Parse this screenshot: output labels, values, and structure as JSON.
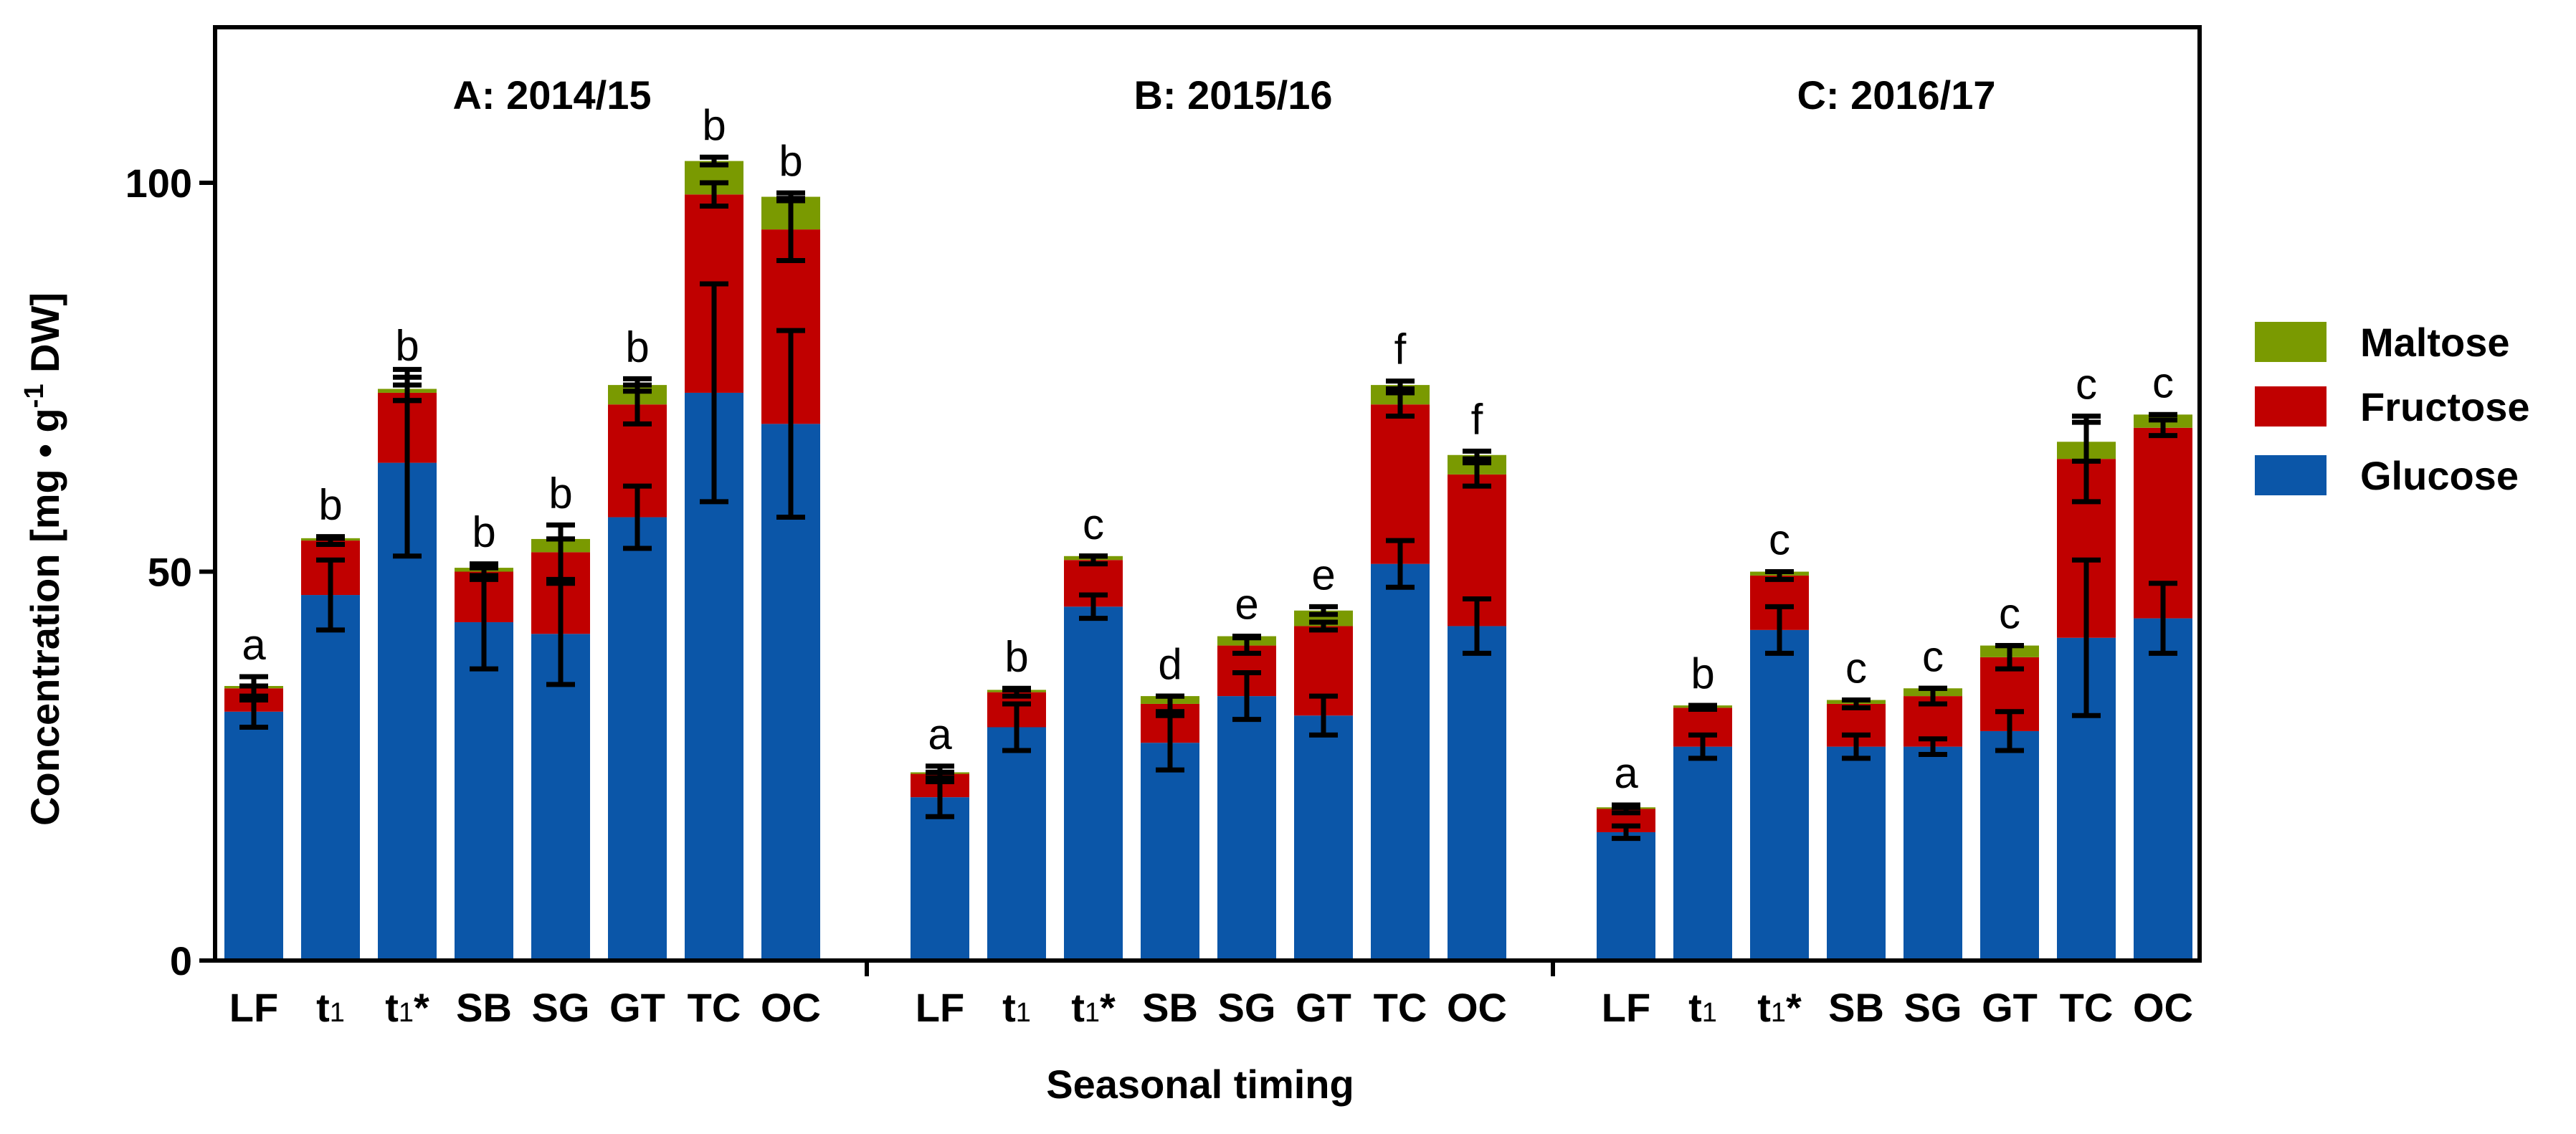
{
  "chart_data": {
    "type": "bar",
    "stacked": true,
    "title": "",
    "xlabel": "Seasonal timing",
    "ylabel": "Concentration [mg • g",
    "ylabel_sup": "-1",
    "ylabel_tail": " DW]",
    "ylim": [
      0,
      120
    ],
    "yticks": [
      0,
      50,
      100
    ],
    "legend": {
      "position": "right",
      "entries": [
        {
          "name": "Maltose",
          "color": "#7a9a01"
        },
        {
          "name": "Fructose",
          "color": "#c00000"
        },
        {
          "name": "Glucose",
          "color": "#0b56a8"
        }
      ]
    },
    "series_order": [
      "Glucose",
      "Fructose",
      "Maltose"
    ],
    "colors": {
      "Glucose": "#0b56a8",
      "Fructose": "#c00000",
      "Maltose": "#7a9a01"
    },
    "categories": [
      "LF",
      "t1",
      "t1*",
      "SB",
      "SG",
      "GT",
      "TC",
      "OC"
    ],
    "category_labels": [
      {
        "main": "LF",
        "sub": "",
        "suffix": ""
      },
      {
        "main": "t",
        "sub": "1",
        "suffix": ""
      },
      {
        "main": "t",
        "sub": "1",
        "suffix": "*"
      },
      {
        "main": "SB",
        "sub": "",
        "suffix": ""
      },
      {
        "main": "SG",
        "sub": "",
        "suffix": ""
      },
      {
        "main": "GT",
        "sub": "",
        "suffix": ""
      },
      {
        "main": "TC",
        "sub": "",
        "suffix": ""
      },
      {
        "main": "OC",
        "sub": "",
        "suffix": ""
      }
    ],
    "panels": [
      {
        "title": "A: 2014/15",
        "letters": [
          "a",
          "b",
          "b",
          "b",
          "b",
          "b",
          "b",
          "b"
        ],
        "glucose": [
          32,
          47,
          64,
          43.5,
          42,
          57,
          73,
          69
        ],
        "fructose": [
          3,
          7,
          9,
          6.5,
          10.5,
          14.5,
          25.5,
          25
        ],
        "maltose": [
          0.3,
          0.3,
          0.5,
          0.5,
          1.7,
          2.5,
          4.3,
          4.2
        ],
        "glucose_err": [
          2,
          4.5,
          12,
          6,
          6.5,
          4,
          14,
          12
        ],
        "fructose_err": [
          1.5,
          0.5,
          1,
          1,
          3.5,
          2.5,
          1.5,
          4
        ],
        "maltose_err": [
          0,
          0,
          1.5,
          0,
          0,
          0.8,
          0.5,
          0.5
        ]
      },
      {
        "title": "B: 2015/16",
        "letters": [
          "a",
          "b",
          "c",
          "d",
          "e",
          "e",
          "f",
          "f"
        ],
        "glucose": [
          21,
          30,
          45.5,
          28,
          34,
          31.5,
          51,
          43
        ],
        "fructose": [
          3,
          4.5,
          6,
          5,
          6.5,
          11.5,
          20.5,
          19.5
        ],
        "maltose": [
          0.2,
          0.3,
          0.5,
          1,
          1.2,
          2,
          2.5,
          2.5
        ],
        "glucose_err": [
          2.5,
          3,
          1.5,
          3.5,
          3,
          2.5,
          3,
          3.5
        ],
        "fructose_err": [
          1,
          0.5,
          0.5,
          1,
          1,
          0.5,
          1.5,
          1.5
        ],
        "maltose_err": [
          0,
          0,
          0,
          0,
          0,
          0.5,
          0.5,
          0.5
        ]
      },
      {
        "title": "C: 2016/17",
        "letters": [
          "a",
          "b",
          "c",
          "c",
          "c",
          "c",
          "c",
          "c"
        ],
        "glucose": [
          16.5,
          27.5,
          42.5,
          27.5,
          27.5,
          29.5,
          41.5,
          44
        ],
        "fructose": [
          3,
          5,
          7,
          5.5,
          6.5,
          9.5,
          23,
          24.5
        ],
        "maltose": [
          0.2,
          0.3,
          0.5,
          0.5,
          1,
          1.5,
          2.2,
          1.7
        ],
        "glucose_err": [
          0.8,
          1.5,
          3,
          1.5,
          1,
          2.5,
          10,
          4.5
        ],
        "fructose_err": [
          0.5,
          0.2,
          0.5,
          0.5,
          1,
          1.5,
          5.5,
          1
        ],
        "maltose_err": [
          0,
          0,
          0,
          0,
          0,
          0,
          2.5,
          0
        ]
      }
    ]
  }
}
